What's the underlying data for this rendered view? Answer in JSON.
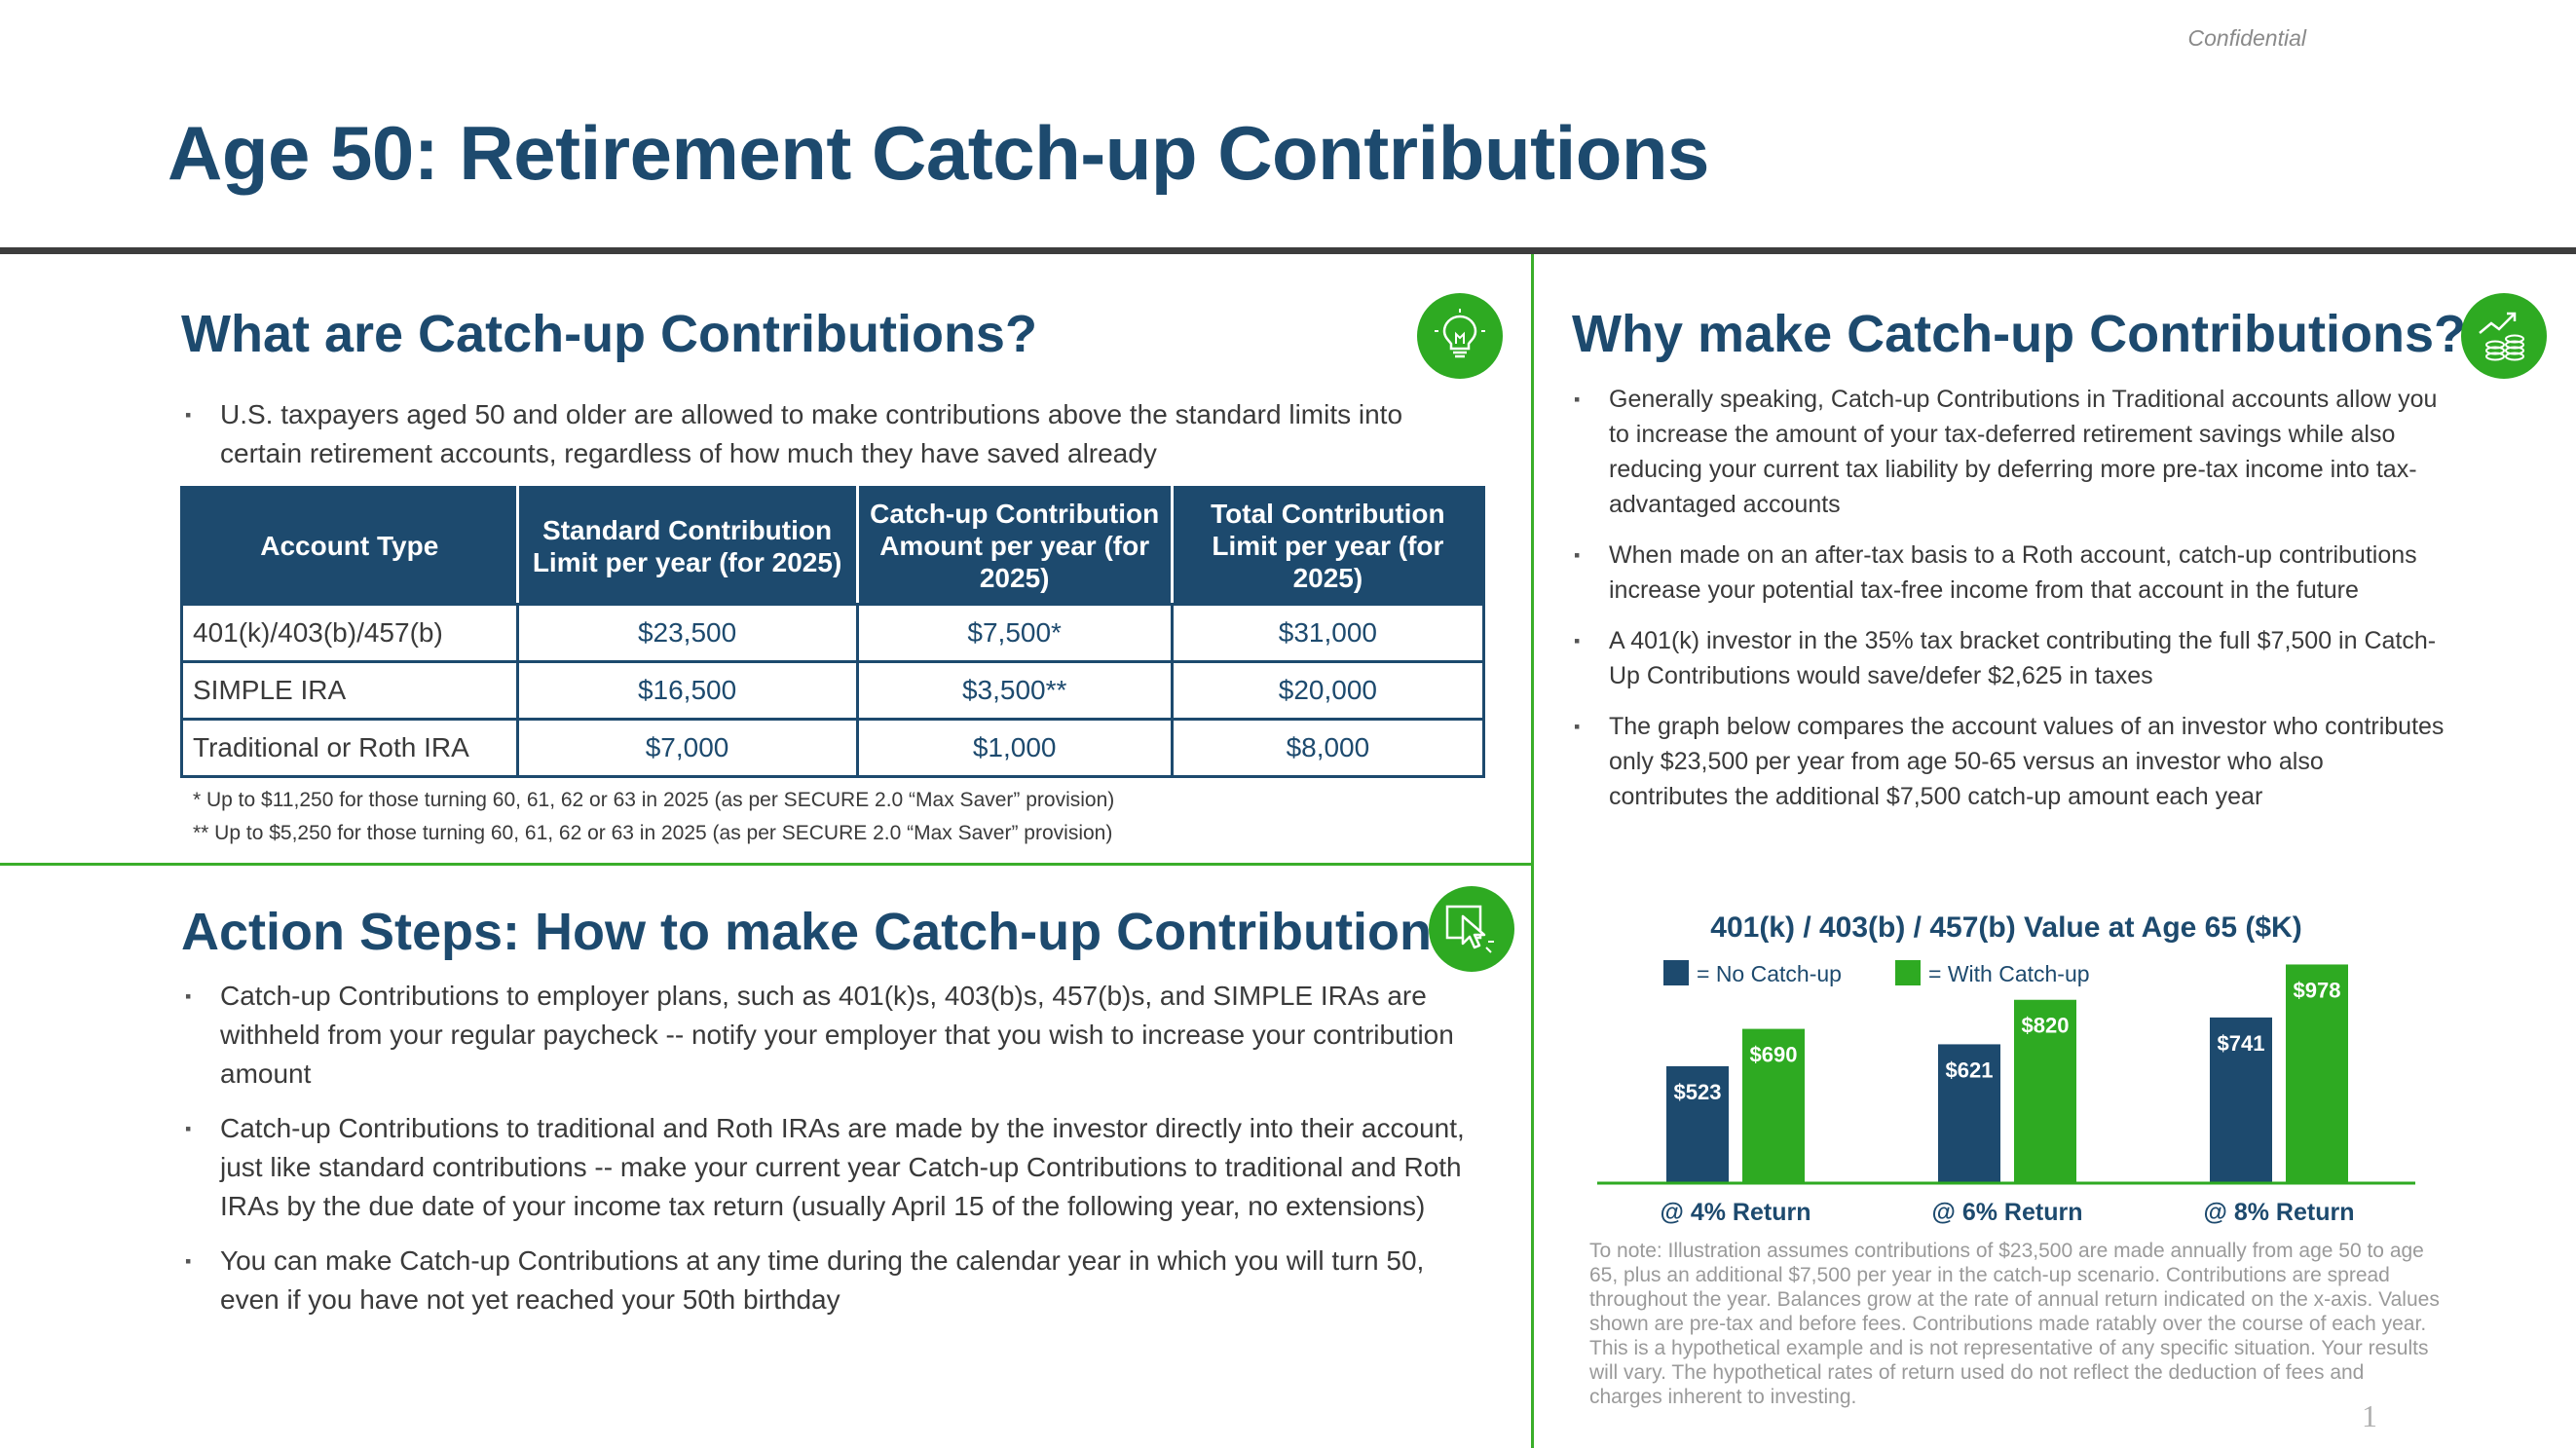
{
  "header": {
    "confidential": "Confidential",
    "title": "Age 50: Retirement Catch-up Contributions"
  },
  "what": {
    "title": "What are Catch-up Contributions?",
    "icon": "lightbulb-icon",
    "bullets": [
      "U.S. taxpayers aged 50 and older are allowed to make contributions above the standard limits into certain retirement accounts, regardless of how much they have saved already"
    ],
    "table": {
      "headers": [
        "Account Type",
        "Standard Contribution Limit per year (for 2025)",
        "Catch-up Contribution Amount per year (for 2025)",
        "Total Contribution Limit per year (for 2025)"
      ],
      "rows": [
        [
          "401(k)/403(b)/457(b)",
          "$23,500",
          "$7,500*",
          "$31,000"
        ],
        [
          "SIMPLE IRA",
          "$16,500",
          "$3,500**",
          "$20,000"
        ],
        [
          "Traditional or Roth IRA",
          "$7,000",
          "$1,000",
          "$8,000"
        ]
      ]
    },
    "footnotes": [
      "* Up to $11,250 for those turning 60, 61, 62 or 63 in 2025 (as per SECURE 2.0 “Max Saver” provision)",
      "** Up to $5,250 for those turning 60, 61, 62 or 63 in 2025 (as per SECURE 2.0 “Max Saver” provision)"
    ]
  },
  "action": {
    "title": "Action Steps: How to make Catch-up Contributions",
    "icon": "pointer-click-icon",
    "bullets": [
      "Catch-up Contributions to employer plans, such as 401(k)s, 403(b)s, 457(b)s, and SIMPLE IRAs are withheld from your regular paycheck -- notify your employer that you wish to increase your contribution amount",
      "Catch-up Contributions to traditional and Roth IRAs are made by the investor directly into their account, just like standard contributions -- make your current year Catch-up Contributions to traditional and Roth IRAs by the due date of your income tax return (usually April 15 of the following year, no extensions)",
      "You can make Catch-up Contributions at any time during the calendar year in which you will turn 50, even if you have not yet reached your 50th birthday"
    ]
  },
  "why": {
    "title": "Why make Catch-up Contributions?",
    "icon": "growth-coins-icon",
    "bullets": [
      "Generally speaking, Catch-up Contributions in Traditional accounts allow you to increase the amount of your tax-deferred retirement savings while also reducing your current tax liability by deferring more pre-tax income into tax-advantaged accounts",
      "When made on an after-tax basis to a Roth account, catch-up contributions increase your potential tax-free income from that account in the future",
      "A 401(k) investor in the 35% tax bracket contributing the full $7,500 in Catch-Up Contributions would save/defer $2,625 in taxes",
      "The graph below compares the account values of an investor who contributes only $23,500 per year from age 50-65 versus an investor who also contributes the additional $7,500 catch-up amount each year"
    ],
    "chart_note": "To note: Illustration assumes contributions of $23,500 are made annually from age 50 to age 65, plus an additional $7,500 per year in the catch-up scenario. Contributions are spread throughout the year. Balances grow at the rate of annual return indicated on the x-axis. Values shown are pre-tax and before fees. Contributions made ratably over the course of each year. This is a hypothetical example and is not representative of any specific situation. Your results will vary. The hypothetical rates of return used do not reflect the deduction of fees and charges inherent to investing."
  },
  "chart_data": {
    "type": "bar",
    "title": "401(k) / 403(b) / 457(b) Value at Age 65 ($K)",
    "categories": [
      "@ 4% Return",
      "@ 6% Return",
      "@ 8% Return"
    ],
    "series": [
      {
        "name": "= No Catch-up",
        "values": [
          523,
          621,
          741
        ],
        "labels": [
          "$523",
          "$621",
          "$741"
        ],
        "color": "#1d4a6e"
      },
      {
        "name": "= With Catch-up",
        "values": [
          690,
          820,
          978
        ],
        "labels": [
          "$690",
          "$820",
          "$978"
        ],
        "color": "#2eaa22"
      }
    ],
    "ylim": [
      0,
      980
    ],
    "grid": false,
    "legend": "top-left",
    "baseline_color": "#2eaa22"
  },
  "page_number": "1",
  "colors": {
    "navy": "#1d4a6e",
    "green": "#2eaa22",
    "rule": "#3d3d3d"
  }
}
